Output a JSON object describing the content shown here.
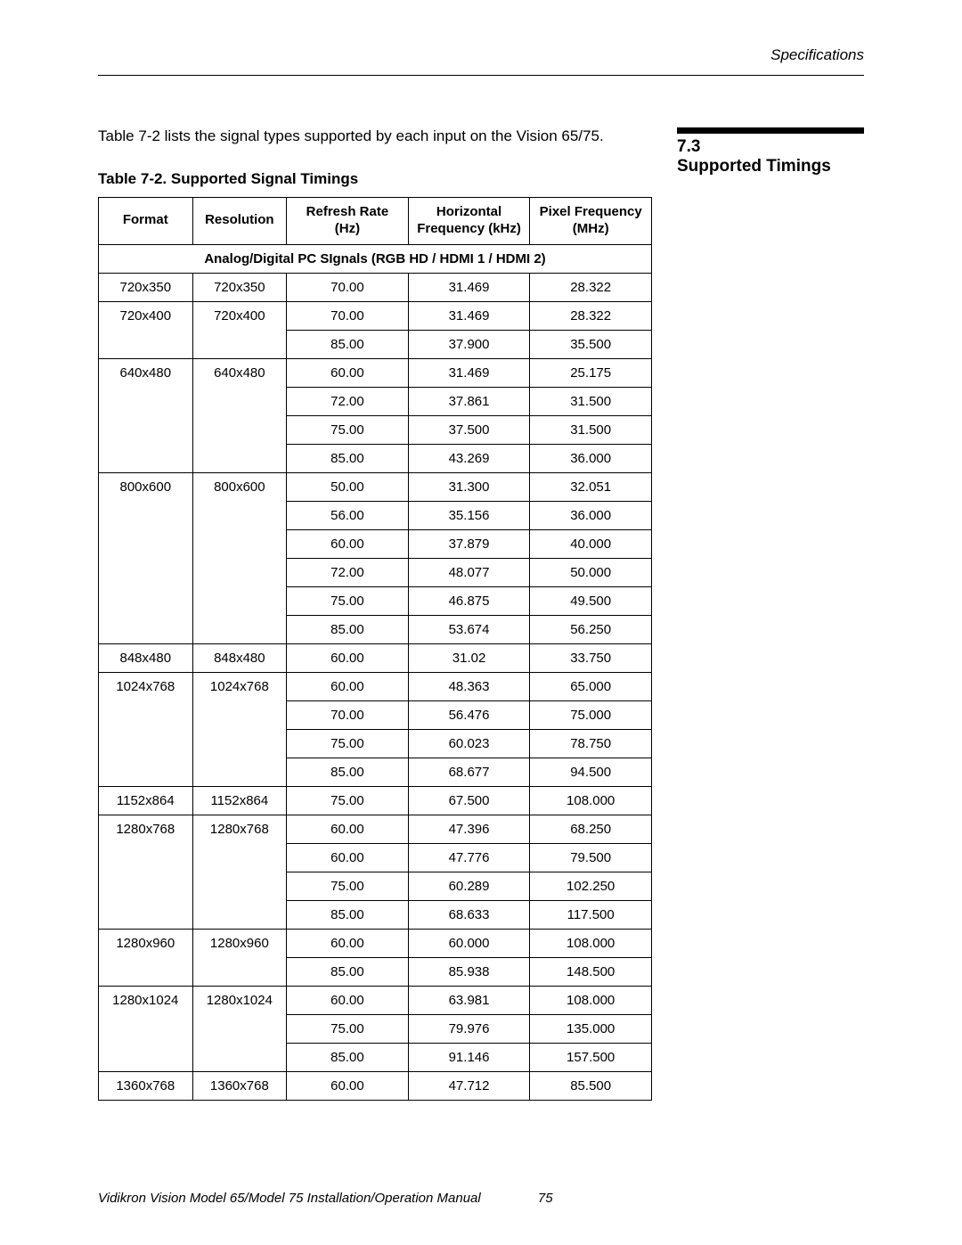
{
  "header": {
    "section_label": "Specifications"
  },
  "section": {
    "number": "7.3",
    "title": "Supported Timings"
  },
  "intro": "Table 7-2 lists the signal types supported by each input on the Vision 65/75.",
  "table_caption": "Table 7-2. Supported Signal Timings",
  "columns": [
    "Format",
    "Resolution",
    "Refresh Rate (Hz)",
    "Horizontal Frequency (kHz)",
    "Pixel Frequency (MHz)"
  ],
  "group_header": "Analog/Digital PC SIgnals (RGB HD / HDMI 1 / HDMI 2)",
  "groups": [
    {
      "format": "720x350",
      "resolution": "720x350",
      "rows": [
        {
          "rr": "70.00",
          "hf": "31.469",
          "pf": "28.322"
        }
      ]
    },
    {
      "format": "720x400",
      "resolution": "720x400",
      "rows": [
        {
          "rr": "70.00",
          "hf": "31.469",
          "pf": "28.322"
        },
        {
          "rr": "85.00",
          "hf": "37.900",
          "pf": "35.500"
        }
      ]
    },
    {
      "format": "640x480",
      "resolution": "640x480",
      "rows": [
        {
          "rr": "60.00",
          "hf": "31.469",
          "pf": "25.175"
        },
        {
          "rr": "72.00",
          "hf": "37.861",
          "pf": "31.500"
        },
        {
          "rr": "75.00",
          "hf": "37.500",
          "pf": "31.500"
        },
        {
          "rr": "85.00",
          "hf": "43.269",
          "pf": "36.000"
        }
      ]
    },
    {
      "format": "800x600",
      "resolution": "800x600",
      "rows": [
        {
          "rr": "50.00",
          "hf": "31.300",
          "pf": "32.051"
        },
        {
          "rr": "56.00",
          "hf": "35.156",
          "pf": "36.000"
        },
        {
          "rr": "60.00",
          "hf": "37.879",
          "pf": "40.000"
        },
        {
          "rr": "72.00",
          "hf": "48.077",
          "pf": "50.000"
        },
        {
          "rr": "75.00",
          "hf": "46.875",
          "pf": "49.500"
        },
        {
          "rr": "85.00",
          "hf": "53.674",
          "pf": "56.250"
        }
      ]
    },
    {
      "format": "848x480",
      "resolution": "848x480",
      "rows": [
        {
          "rr": "60.00",
          "hf": "31.02",
          "pf": "33.750"
        }
      ]
    },
    {
      "format": "1024x768",
      "resolution": "1024x768",
      "rows": [
        {
          "rr": "60.00",
          "hf": "48.363",
          "pf": "65.000"
        },
        {
          "rr": "70.00",
          "hf": "56.476",
          "pf": "75.000"
        },
        {
          "rr": "75.00",
          "hf": "60.023",
          "pf": "78.750"
        },
        {
          "rr": "85.00",
          "hf": "68.677",
          "pf": "94.500"
        }
      ]
    },
    {
      "format": "1152x864",
      "resolution": "1152x864",
      "rows": [
        {
          "rr": "75.00",
          "hf": "67.500",
          "pf": "108.000"
        }
      ]
    },
    {
      "format": "1280x768",
      "resolution": "1280x768",
      "rows": [
        {
          "rr": "60.00",
          "hf": "47.396",
          "pf": "68.250"
        },
        {
          "rr": "60.00",
          "hf": "47.776",
          "pf": "79.500"
        },
        {
          "rr": "75.00",
          "hf": "60.289",
          "pf": "102.250"
        },
        {
          "rr": "85.00",
          "hf": "68.633",
          "pf": "117.500"
        }
      ]
    },
    {
      "format": "1280x960",
      "resolution": "1280x960",
      "rows": [
        {
          "rr": "60.00",
          "hf": "60.000",
          "pf": "108.000"
        },
        {
          "rr": "85.00",
          "hf": "85.938",
          "pf": "148.500"
        }
      ]
    },
    {
      "format": "1280x1024",
      "resolution": "1280x1024",
      "rows": [
        {
          "rr": "60.00",
          "hf": "63.981",
          "pf": "108.000"
        },
        {
          "rr": "75.00",
          "hf": "79.976",
          "pf": "135.000"
        },
        {
          "rr": "85.00",
          "hf": "91.146",
          "pf": "157.500"
        }
      ]
    },
    {
      "format": "1360x768",
      "resolution": "1360x768",
      "rows": [
        {
          "rr": "60.00",
          "hf": "47.712",
          "pf": "85.500"
        }
      ]
    }
  ],
  "footer": {
    "title": "Vidikron Vision Model 65/Model 75 Installation/Operation Manual",
    "page": "75"
  },
  "col_widths": [
    "17%",
    "17%",
    "22%",
    "22%",
    "22%"
  ]
}
